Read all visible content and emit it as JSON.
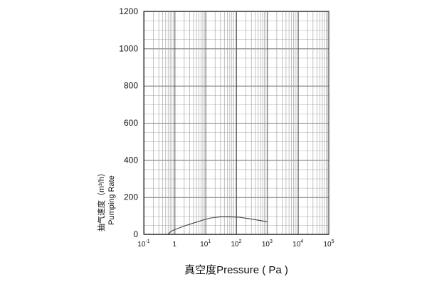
{
  "chart_data": {
    "type": "line",
    "xscale": "log",
    "xlim": [
      0.1,
      100000
    ],
    "ylim": [
      0,
      1200
    ],
    "yticks": [
      0,
      200,
      400,
      600,
      800,
      1000,
      1200
    ],
    "xticks": [
      {
        "value": 0.1,
        "base": "10",
        "exp": "-1"
      },
      {
        "value": 1,
        "base": "1",
        "exp": ""
      },
      {
        "value": 10,
        "base": "10",
        "exp": "1"
      },
      {
        "value": 100,
        "base": "10",
        "exp": "2"
      },
      {
        "value": 1000,
        "base": "10",
        "exp": "3"
      },
      {
        "value": 10000,
        "base": "10",
        "exp": "4"
      },
      {
        "value": 100000,
        "base": "10",
        "exp": "5"
      }
    ],
    "ylabel_cn": "抽气速度（m³/h）",
    "ylabel_en": "Pumping Rate",
    "xlabel": "真空度Pressure ( Pa )",
    "grid": true,
    "series": [
      {
        "color": "#444444",
        "x": [
          0.6,
          0.8,
          1.2,
          2,
          4,
          8,
          15,
          30,
          60,
          120,
          250,
          500,
          1000
        ],
        "y": [
          0,
          18,
          30,
          44,
          60,
          76,
          88,
          94,
          94,
          92,
          85,
          76,
          68
        ]
      }
    ]
  }
}
